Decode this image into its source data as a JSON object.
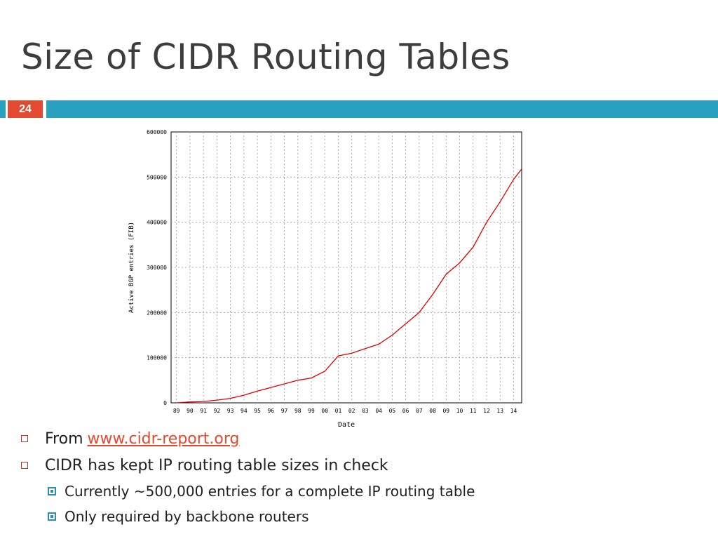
{
  "slide": {
    "title": "Size of CIDR Routing Tables",
    "number": "24"
  },
  "bullets": {
    "item1_text": "From",
    "item1_link": "www.cidr-report.org",
    "item2_text": "CIDR has kept IP routing table sizes in check",
    "sub1": "Currently ~500,000 entries for a complete IP routing table",
    "sub2": "Only required by backbone routers"
  },
  "colors": {
    "accent_bar": "#2aa0c0",
    "slide_number_bg": "#e34a2f",
    "series_line": "#e00000"
  },
  "chart_data": {
    "type": "line",
    "title": "",
    "xlabel": "Date",
    "ylabel": "Active BGP entries (FIB)",
    "x_ticks": [
      "89",
      "90",
      "91",
      "92",
      "93",
      "94",
      "95",
      "96",
      "97",
      "98",
      "99",
      "00",
      "01",
      "02",
      "03",
      "04",
      "05",
      "06",
      "07",
      "08",
      "09",
      "10",
      "11",
      "12",
      "13",
      "14"
    ],
    "y_ticks": [
      0,
      100000,
      200000,
      300000,
      400000,
      500000,
      600000
    ],
    "ylim": [
      0,
      600000
    ],
    "grid": true,
    "series": [
      {
        "x": [
          "1989",
          "1990",
          "1991",
          "1992",
          "1993",
          "1994",
          "1995",
          "1996",
          "1997",
          "1998",
          "1999",
          "2000",
          "2001",
          "2002",
          "2003",
          "2004",
          "2005",
          "2006",
          "2007",
          "2008",
          "2009",
          "2010",
          "2011",
          "2012",
          "2013",
          "2014",
          "2014.6"
        ],
        "values": [
          0,
          2000,
          3000,
          6000,
          10000,
          17000,
          26000,
          34000,
          42000,
          50000,
          55000,
          70000,
          104000,
          110000,
          120000,
          130000,
          150000,
          175000,
          200000,
          240000,
          285000,
          310000,
          345000,
          400000,
          445000,
          495000,
          518000
        ]
      }
    ]
  }
}
